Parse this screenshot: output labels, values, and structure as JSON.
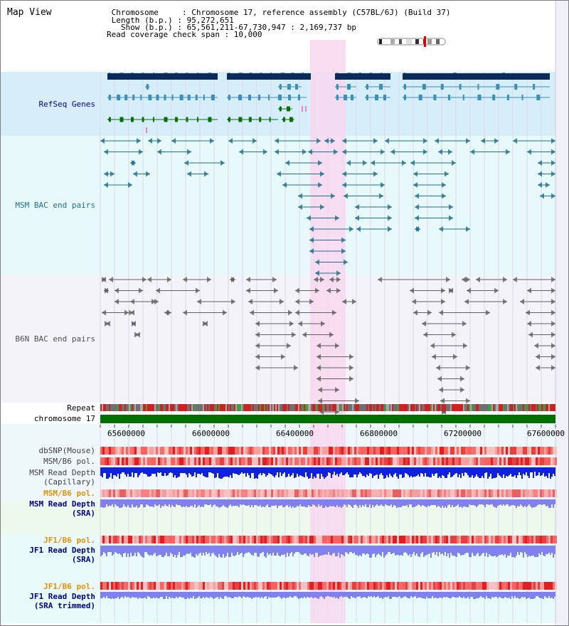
{
  "header": {
    "title": "Map View",
    "info_lines": [
      " Chromosome     : Chromosome 17, reference assembly (C57BL/6J) (Build 37)",
      " Length (b.p.) : 95,272,651",
      "   Show (b.p.) : 65,561,211-67,730,947 : 2,169,737 bp",
      "Read coverage check span : 10,000"
    ]
  },
  "tracks": {
    "refseq": "RefSeq Genes",
    "msm_bac": "MSM BAC end pairs",
    "b6n_bac": "B6N BAC end pairs",
    "repeat": "Repeat",
    "chromosome": "chromosome 17",
    "dbsnp": "dbSNP(Mouse)",
    "msm_b6_pol": "MSM/B6 pol.",
    "msm_depth_cap_1": "MSM Read Depth",
    "msm_depth_cap_2": "(Capillary)",
    "msm_b6_pol_sra": "MSM/B6 pol.",
    "msm_depth_sra_1": "MSM Read Depth",
    "msm_depth_sra_2": "(SRA)",
    "jf1_b6_pol": "JF1/B6 pol.",
    "jf1_depth_1": "JF1 Read Depth",
    "jf1_depth_2": "(SRA)",
    "jf1_b6_pol_t": "JF1/B6 pol.",
    "jf1_depth_t_1": "JF1 Read Depth",
    "jf1_depth_t_2": "(SRA trimmed)"
  },
  "axis": {
    "ticks": [
      "65600000",
      "66000000",
      "66400000",
      "66800000",
      "67200000",
      "67600000"
    ]
  },
  "colors": {
    "highlight": "#f8d8f0",
    "refseq_bg": "#d8f0fa",
    "msm_bg": "#e8fafa",
    "b6n_bg": "#f4f4fa",
    "gene_dark": "#0a2a5a",
    "gene_mid": "#3b8fb8",
    "gene_green": "#0a6e0a",
    "msm_line": "#1f6f8f",
    "b6n_line": "#606060",
    "depth_blue": "#1020e0",
    "depth_violet": "#8080f0",
    "pol_red": "#e04040",
    "label_blue": "#00008b",
    "label_orange": "#e89000"
  }
}
